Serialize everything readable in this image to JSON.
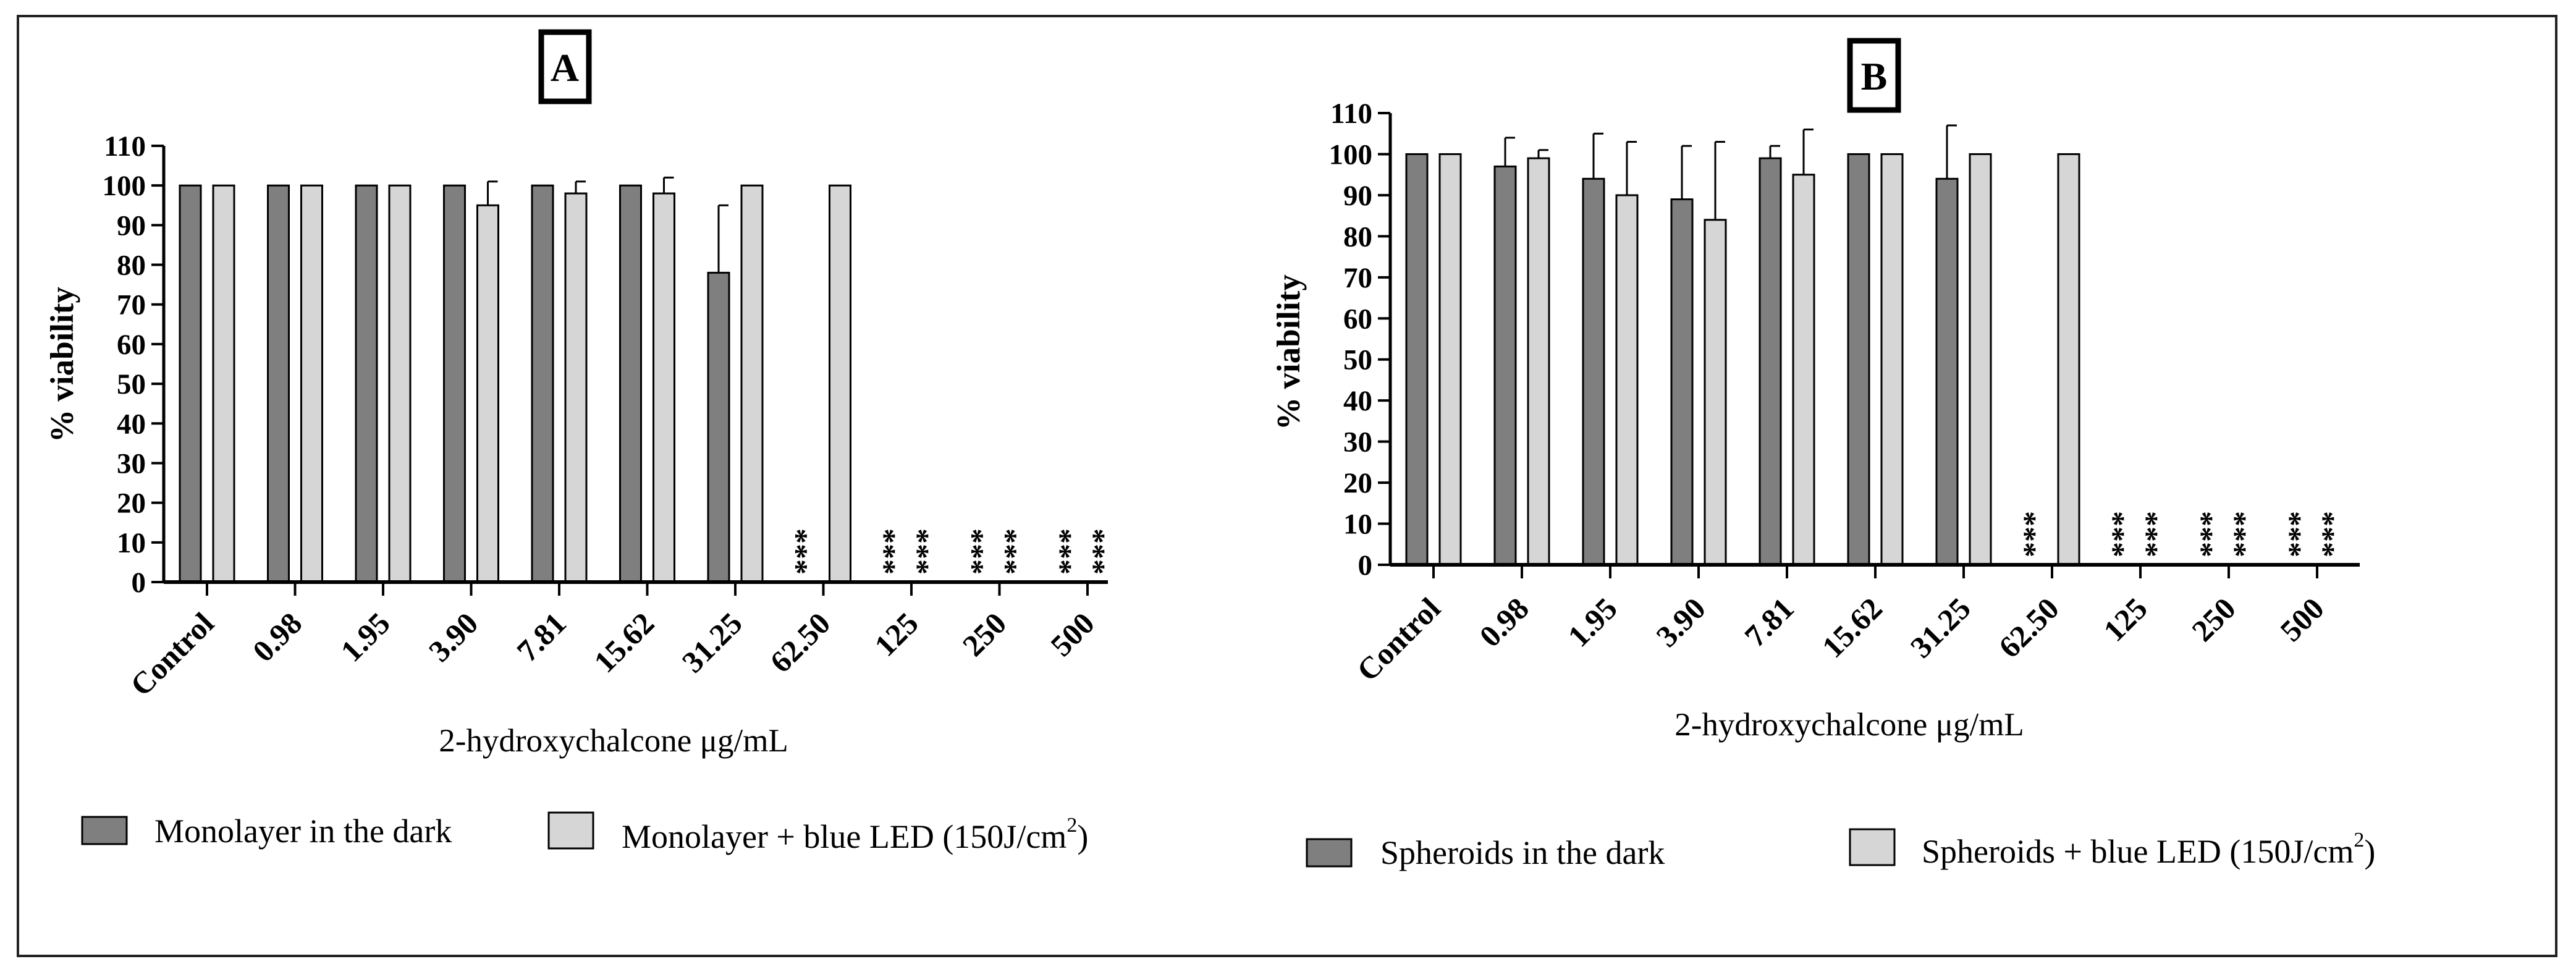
{
  "colors": {
    "dark": "#7f7f7f",
    "light": "#d6d6d6",
    "stroke": "#000000"
  },
  "chart_data": [
    {
      "type": "bar",
      "panel": "A",
      "xlabel_prefix": "2-hydroxychalcone ",
      "xlabel_unit": "μg/mL",
      "ylabel": "% viability",
      "ylim": [
        0,
        110
      ],
      "yticks": [
        "0",
        "10",
        "20",
        "30",
        "40",
        "50",
        "60",
        "70",
        "80",
        "90",
        "100",
        "110"
      ],
      "categories": [
        "Control",
        "0.98",
        "1.95",
        "3.90",
        "7.81",
        "15.62",
        "31.25",
        "62.50",
        "125",
        "250",
        "500"
      ],
      "series": [
        {
          "name": "Monolayer in the dark",
          "values": [
            100,
            100,
            100,
            100,
            100,
            100,
            78,
            0,
            0,
            0,
            0
          ],
          "errors": [
            0,
            0,
            0,
            0,
            0,
            0,
            17,
            0,
            0,
            0,
            0
          ]
        },
        {
          "name": "Monolayer + blue LED (150J/cm",
          "name_sup": "2",
          "name_end": ")",
          "values": [
            100,
            100,
            100,
            95,
            98,
            98,
            100,
            100,
            0,
            0,
            0
          ],
          "errors": [
            0,
            0,
            0,
            6,
            3,
            4,
            0,
            0,
            0,
            0,
            0
          ]
        }
      ],
      "annotations": [
        {
          "category": "62.50",
          "series": 0,
          "label": "***"
        },
        {
          "category": "125",
          "series": 0,
          "label": "***"
        },
        {
          "category": "125",
          "series": 1,
          "label": "***"
        },
        {
          "category": "250",
          "series": 0,
          "label": "***"
        },
        {
          "category": "250",
          "series": 1,
          "label": "***"
        },
        {
          "category": "500",
          "series": 0,
          "label": "***"
        },
        {
          "category": "500",
          "series": 1,
          "label": "***"
        }
      ]
    },
    {
      "type": "bar",
      "panel": "B",
      "xlabel_prefix": "2-hydroxychalcone ",
      "xlabel_unit": "μg/mL",
      "ylabel": "% viability",
      "ylim": [
        0,
        110
      ],
      "yticks": [
        "0",
        "10",
        "20",
        "30",
        "40",
        "50",
        "60",
        "70",
        "80",
        "90",
        "100",
        "110"
      ],
      "categories": [
        "Control",
        "0.98",
        "1.95",
        "3.90",
        "7.81",
        "15.62",
        "31.25",
        "62.50",
        "125",
        "250",
        "500"
      ],
      "series": [
        {
          "name": "Spheroids in the dark",
          "values": [
            100,
            97,
            94,
            89,
            99,
            100,
            94,
            0,
            0,
            0,
            0
          ],
          "errors": [
            0,
            7,
            11,
            13,
            3,
            0,
            13,
            0,
            0,
            0,
            0
          ]
        },
        {
          "name": "Spheroids + blue LED (150J/cm",
          "name_sup": "2",
          "name_end": ")",
          "values": [
            100,
            99,
            90,
            84,
            95,
            100,
            100,
            100,
            0,
            0,
            0
          ],
          "errors": [
            0,
            2,
            13,
            19,
            11,
            0,
            0,
            0,
            0,
            0,
            0
          ]
        }
      ],
      "annotations": [
        {
          "category": "62.50",
          "series": 0,
          "label": "***"
        },
        {
          "category": "125",
          "series": 0,
          "label": "***"
        },
        {
          "category": "125",
          "series": 1,
          "label": "***"
        },
        {
          "category": "250",
          "series": 0,
          "label": "***"
        },
        {
          "category": "250",
          "series": 1,
          "label": "***"
        },
        {
          "category": "500",
          "series": 0,
          "label": "***"
        },
        {
          "category": "500",
          "series": 1,
          "label": "***"
        }
      ]
    }
  ]
}
